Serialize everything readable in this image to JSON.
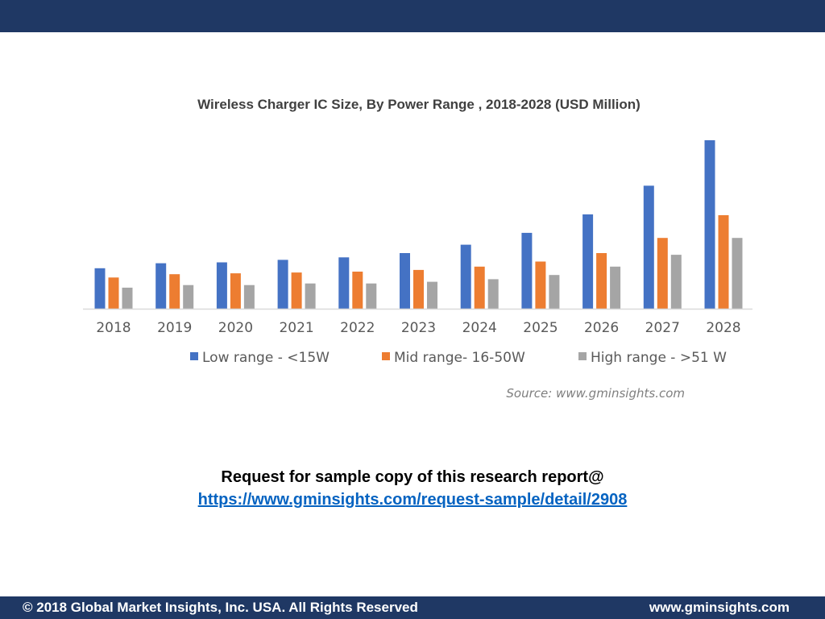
{
  "colors": {
    "header_bar": "#1f3864",
    "link": "#0563c1"
  },
  "chart_data": {
    "type": "bar",
    "title": "Wireless Charger IC  Size, By Power Range , 2018-2028  (USD  Million)",
    "categories": [
      "2018",
      "2019",
      "2020",
      "2021",
      "2022",
      "2023",
      "2024",
      "2025",
      "2026",
      "2027",
      "2028"
    ],
    "series": [
      {
        "name": "Low range - <15W",
        "color": "#4472c4",
        "values": [
          24,
          27,
          27.5,
          29,
          30.5,
          33,
          38,
          45,
          56,
          73,
          100
        ]
      },
      {
        "name": "Mid range- 16-50W",
        "color": "#ed7d31",
        "values": [
          18.5,
          20.5,
          21,
          21.5,
          22,
          23,
          25,
          28,
          33,
          42,
          55.5
        ]
      },
      {
        "name": "High range - >51 W",
        "color": "#a5a5a5",
        "values": [
          12.5,
          14,
          14,
          15,
          15,
          16,
          17.5,
          20,
          25,
          32,
          42
        ]
      }
    ],
    "ylim": [
      0,
      100
    ],
    "grid": false,
    "y_axis_visible": false,
    "legend_position": "bottom",
    "source": "Source:  www.gminsights.com"
  },
  "request": {
    "text": "Request for sample copy of this research report@",
    "link": "https://www.gminsights.com/request-sample/detail/2908"
  },
  "footer": {
    "copyright": "© 2018 Global Market Insights, Inc. USA. All Rights Reserved",
    "website": "www.gminsights.com"
  }
}
